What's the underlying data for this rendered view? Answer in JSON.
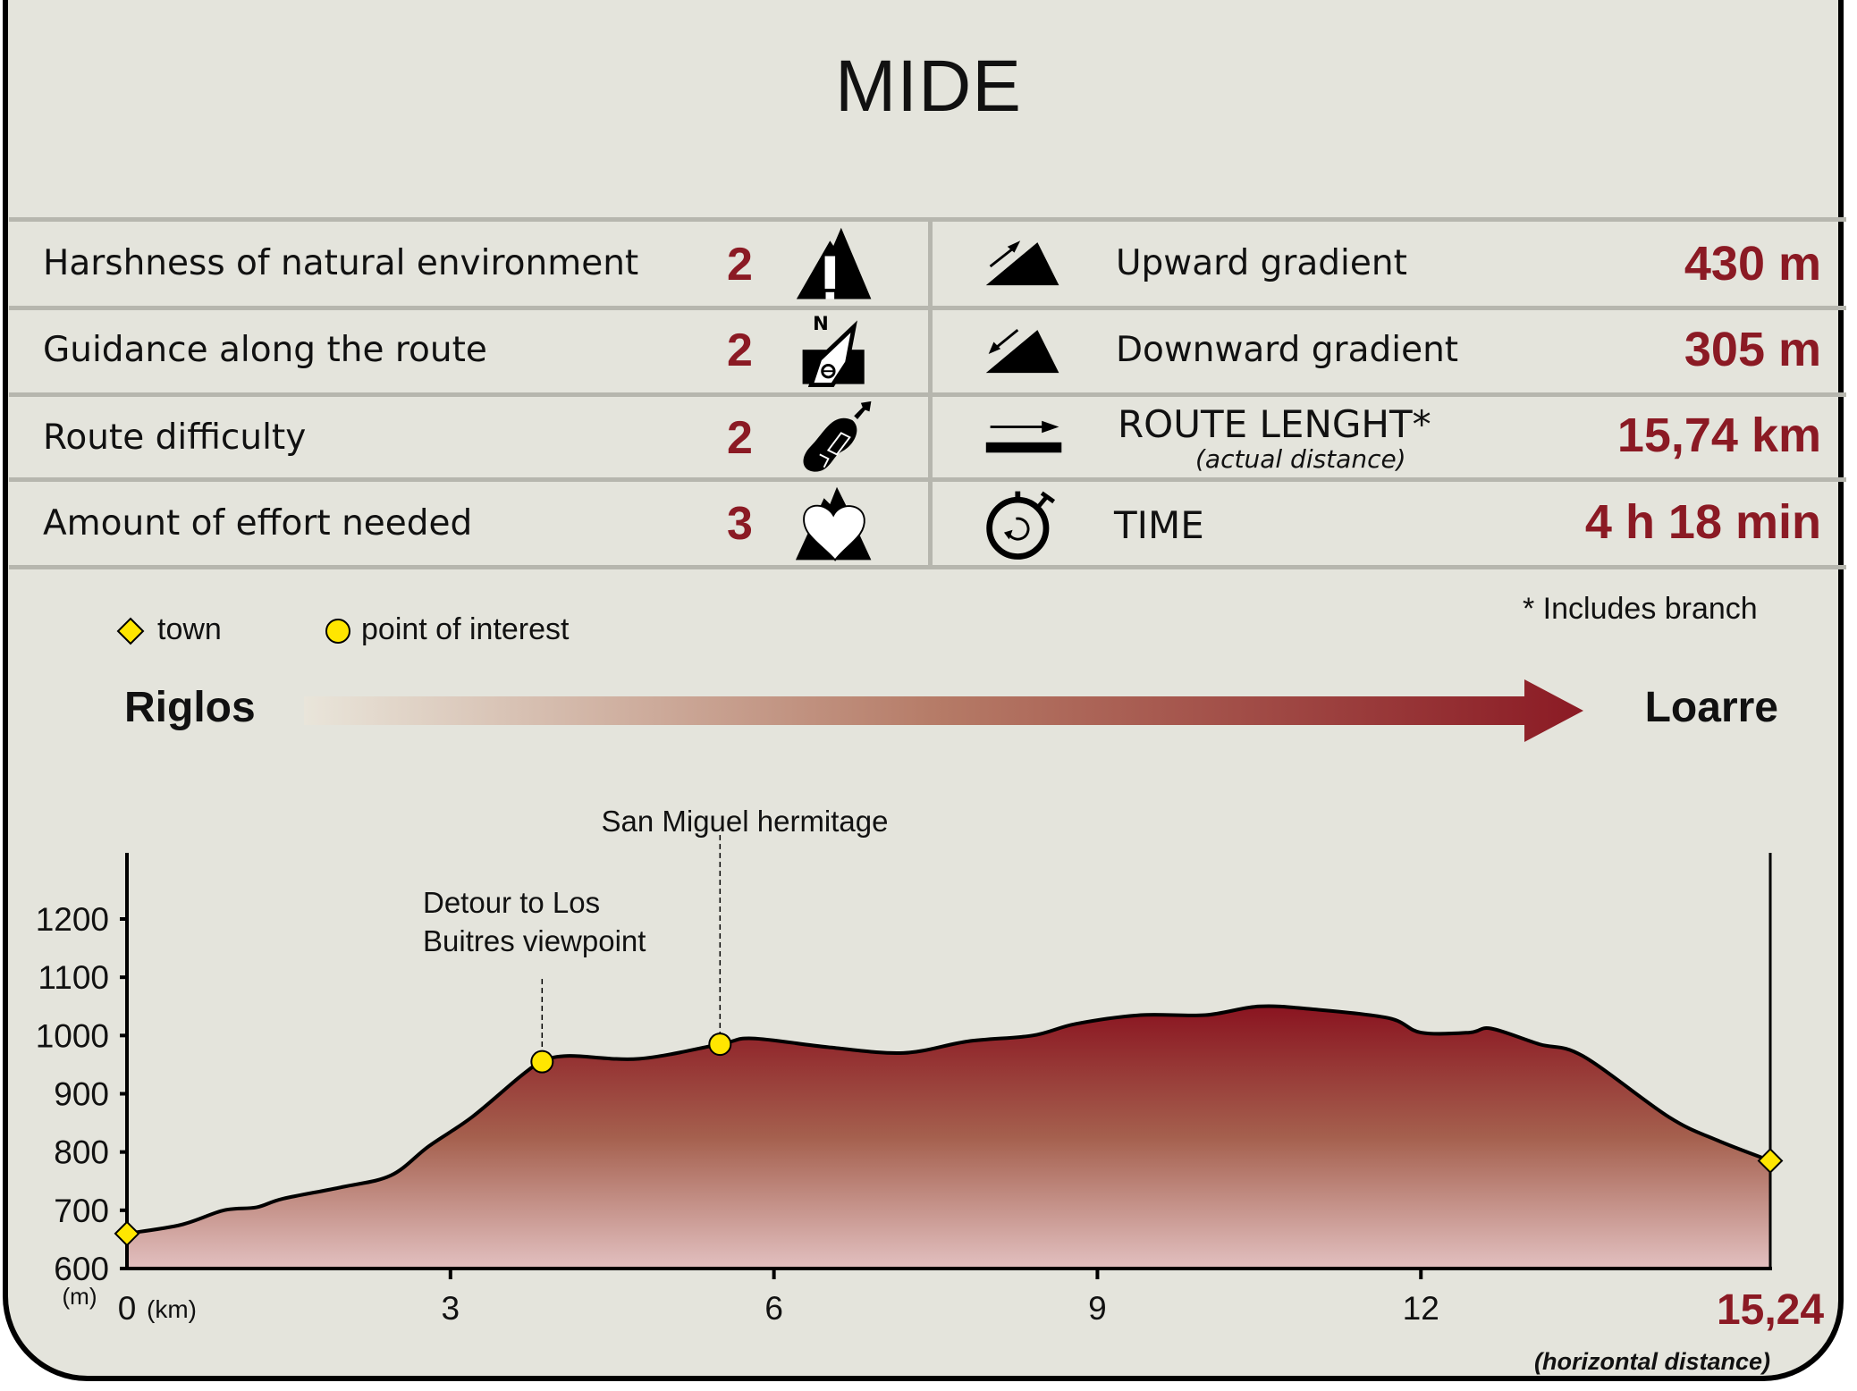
{
  "title": "MIDE",
  "mide": [
    {
      "label": "Harshness of natural environment",
      "score": "2",
      "icon": "mountain-warning-icon"
    },
    {
      "label": "Guidance along the route",
      "score": "2",
      "icon": "compass-orientation-icon"
    },
    {
      "label": "Route difficulty",
      "score": "2",
      "icon": "boot-sole-icon"
    },
    {
      "label": "Amount of effort needed",
      "score": "3",
      "icon": "heart-mountain-icon"
    }
  ],
  "stats": [
    {
      "label": "Upward gradient",
      "value": "430 m",
      "icon": "uphill-arrow-icon"
    },
    {
      "label": "Downward gradient",
      "value": "305 m",
      "icon": "downhill-arrow-icon"
    },
    {
      "label": "ROUTE LENGHT*",
      "sublabel": "(actual distance)",
      "value": "15,74 km",
      "icon": "distance-arrow-icon"
    },
    {
      "label": "TIME",
      "value": "4 h 18 min",
      "icon": "stopwatch-icon"
    }
  ],
  "legend": {
    "town": "town",
    "poi": "point of interest",
    "note": "* Includes branch"
  },
  "route": {
    "start": "Riglos",
    "end": "Loarre"
  },
  "colors": {
    "accent": "#8b1a24",
    "marker": "#ffe600",
    "background": "#e4e4dc"
  },
  "chart_data": {
    "type": "area",
    "xlabel": "(km)",
    "ylabel": "(m)",
    "xlim": [
      0,
      15.24
    ],
    "ylim": [
      600,
      1300
    ],
    "xticks": [
      "0",
      "3",
      "6",
      "9",
      "12"
    ],
    "yticks": [
      "600",
      "700",
      "800",
      "900",
      "1000",
      "1100",
      "1200"
    ],
    "x_end_label": "15,24",
    "x_end_note": "(horizontal distance)",
    "x": [
      0,
      0.5,
      0.9,
      1.2,
      1.45,
      2.0,
      2.45,
      2.8,
      3.2,
      3.65,
      3.85,
      4.1,
      4.75,
      5.5,
      5.8,
      6.5,
      7.2,
      7.8,
      8.4,
      8.8,
      9.4,
      10.0,
      10.5,
      11.0,
      11.7,
      12.0,
      12.45,
      12.65,
      13.1,
      13.5,
      14.3,
      14.75,
      15.24
    ],
    "y": [
      660,
      675,
      700,
      705,
      720,
      740,
      760,
      810,
      860,
      930,
      955,
      965,
      960,
      985,
      995,
      980,
      970,
      990,
      1000,
      1020,
      1035,
      1035,
      1050,
      1045,
      1030,
      1005,
      1005,
      1012,
      985,
      965,
      860,
      820,
      785
    ],
    "markers": [
      {
        "type": "town",
        "km": 0,
        "elev": 660
      },
      {
        "type": "poi",
        "km": 3.85,
        "elev": 955,
        "label": "Detour to Los",
        "label2": "Buitres viewpoint"
      },
      {
        "type": "poi",
        "km": 5.5,
        "elev": 985,
        "label": "San Miguel hermitage"
      },
      {
        "type": "town",
        "km": 15.24,
        "elev": 785
      }
    ]
  }
}
